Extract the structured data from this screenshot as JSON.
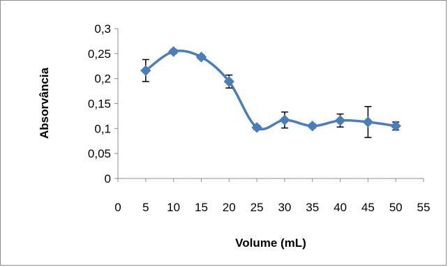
{
  "chart_data": {
    "type": "line",
    "title": "",
    "xlabel": "Volume (mL)",
    "ylabel": "Absorvância",
    "xlim": [
      0,
      55
    ],
    "ylim": [
      0,
      0.3
    ],
    "x_ticks": [
      0,
      5,
      10,
      15,
      20,
      25,
      30,
      35,
      40,
      45,
      50,
      55
    ],
    "x_tick_labels": [
      "0",
      "5",
      "10",
      "15",
      "20",
      "25",
      "30",
      "35",
      "40",
      "45",
      "50",
      "55"
    ],
    "y_ticks": [
      0,
      0.05,
      0.1,
      0.15,
      0.2,
      0.25,
      0.3
    ],
    "y_tick_labels": [
      "0",
      "0,05",
      "0,1",
      "0,15",
      "0,2",
      "0,25",
      "0,3"
    ],
    "grid": false,
    "legend": "none",
    "series": [
      {
        "color": "#4a7ebb",
        "marker": "diamond",
        "smooth": true,
        "x": [
          5,
          10,
          15,
          20,
          25,
          30,
          35,
          40,
          45,
          50
        ],
        "y": [
          0.216,
          0.254,
          0.243,
          0.194,
          0.102,
          0.117,
          0.105,
          0.116,
          0.113,
          0.105
        ],
        "error": [
          0.022,
          0.004,
          0.004,
          0.013,
          0.004,
          0.016,
          0.004,
          0.013,
          0.031,
          0.008
        ]
      }
    ]
  }
}
